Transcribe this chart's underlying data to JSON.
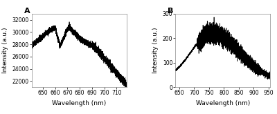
{
  "panel_A": {
    "label": "A",
    "xlim": [
      641,
      718
    ],
    "ylim": [
      21000,
      33000
    ],
    "xticks": [
      650,
      660,
      670,
      680,
      690,
      700,
      710
    ],
    "yticks": [
      22000,
      24000,
      26000,
      28000,
      30000,
      32000
    ],
    "xlabel": "Wavelength (nm)",
    "ylabel": "Intensity (a.u.)"
  },
  "panel_B": {
    "label": "B",
    "xlim": [
      638,
      955
    ],
    "ylim": [
      0,
      300
    ],
    "xticks": [
      650,
      700,
      750,
      800,
      850,
      900,
      950
    ],
    "yticks": [
      0,
      100,
      200,
      300
    ],
    "xlabel": "Wavelength (nm)",
    "ylabel": "Intensity (a.u.)"
  },
  "line_color": "#000000",
  "bg_color": "#ffffff",
  "outer_bg": "#ffffff",
  "font_size_label": 6.5,
  "font_size_tick": 5.5,
  "font_size_panel": 8,
  "line_width": 0.5
}
